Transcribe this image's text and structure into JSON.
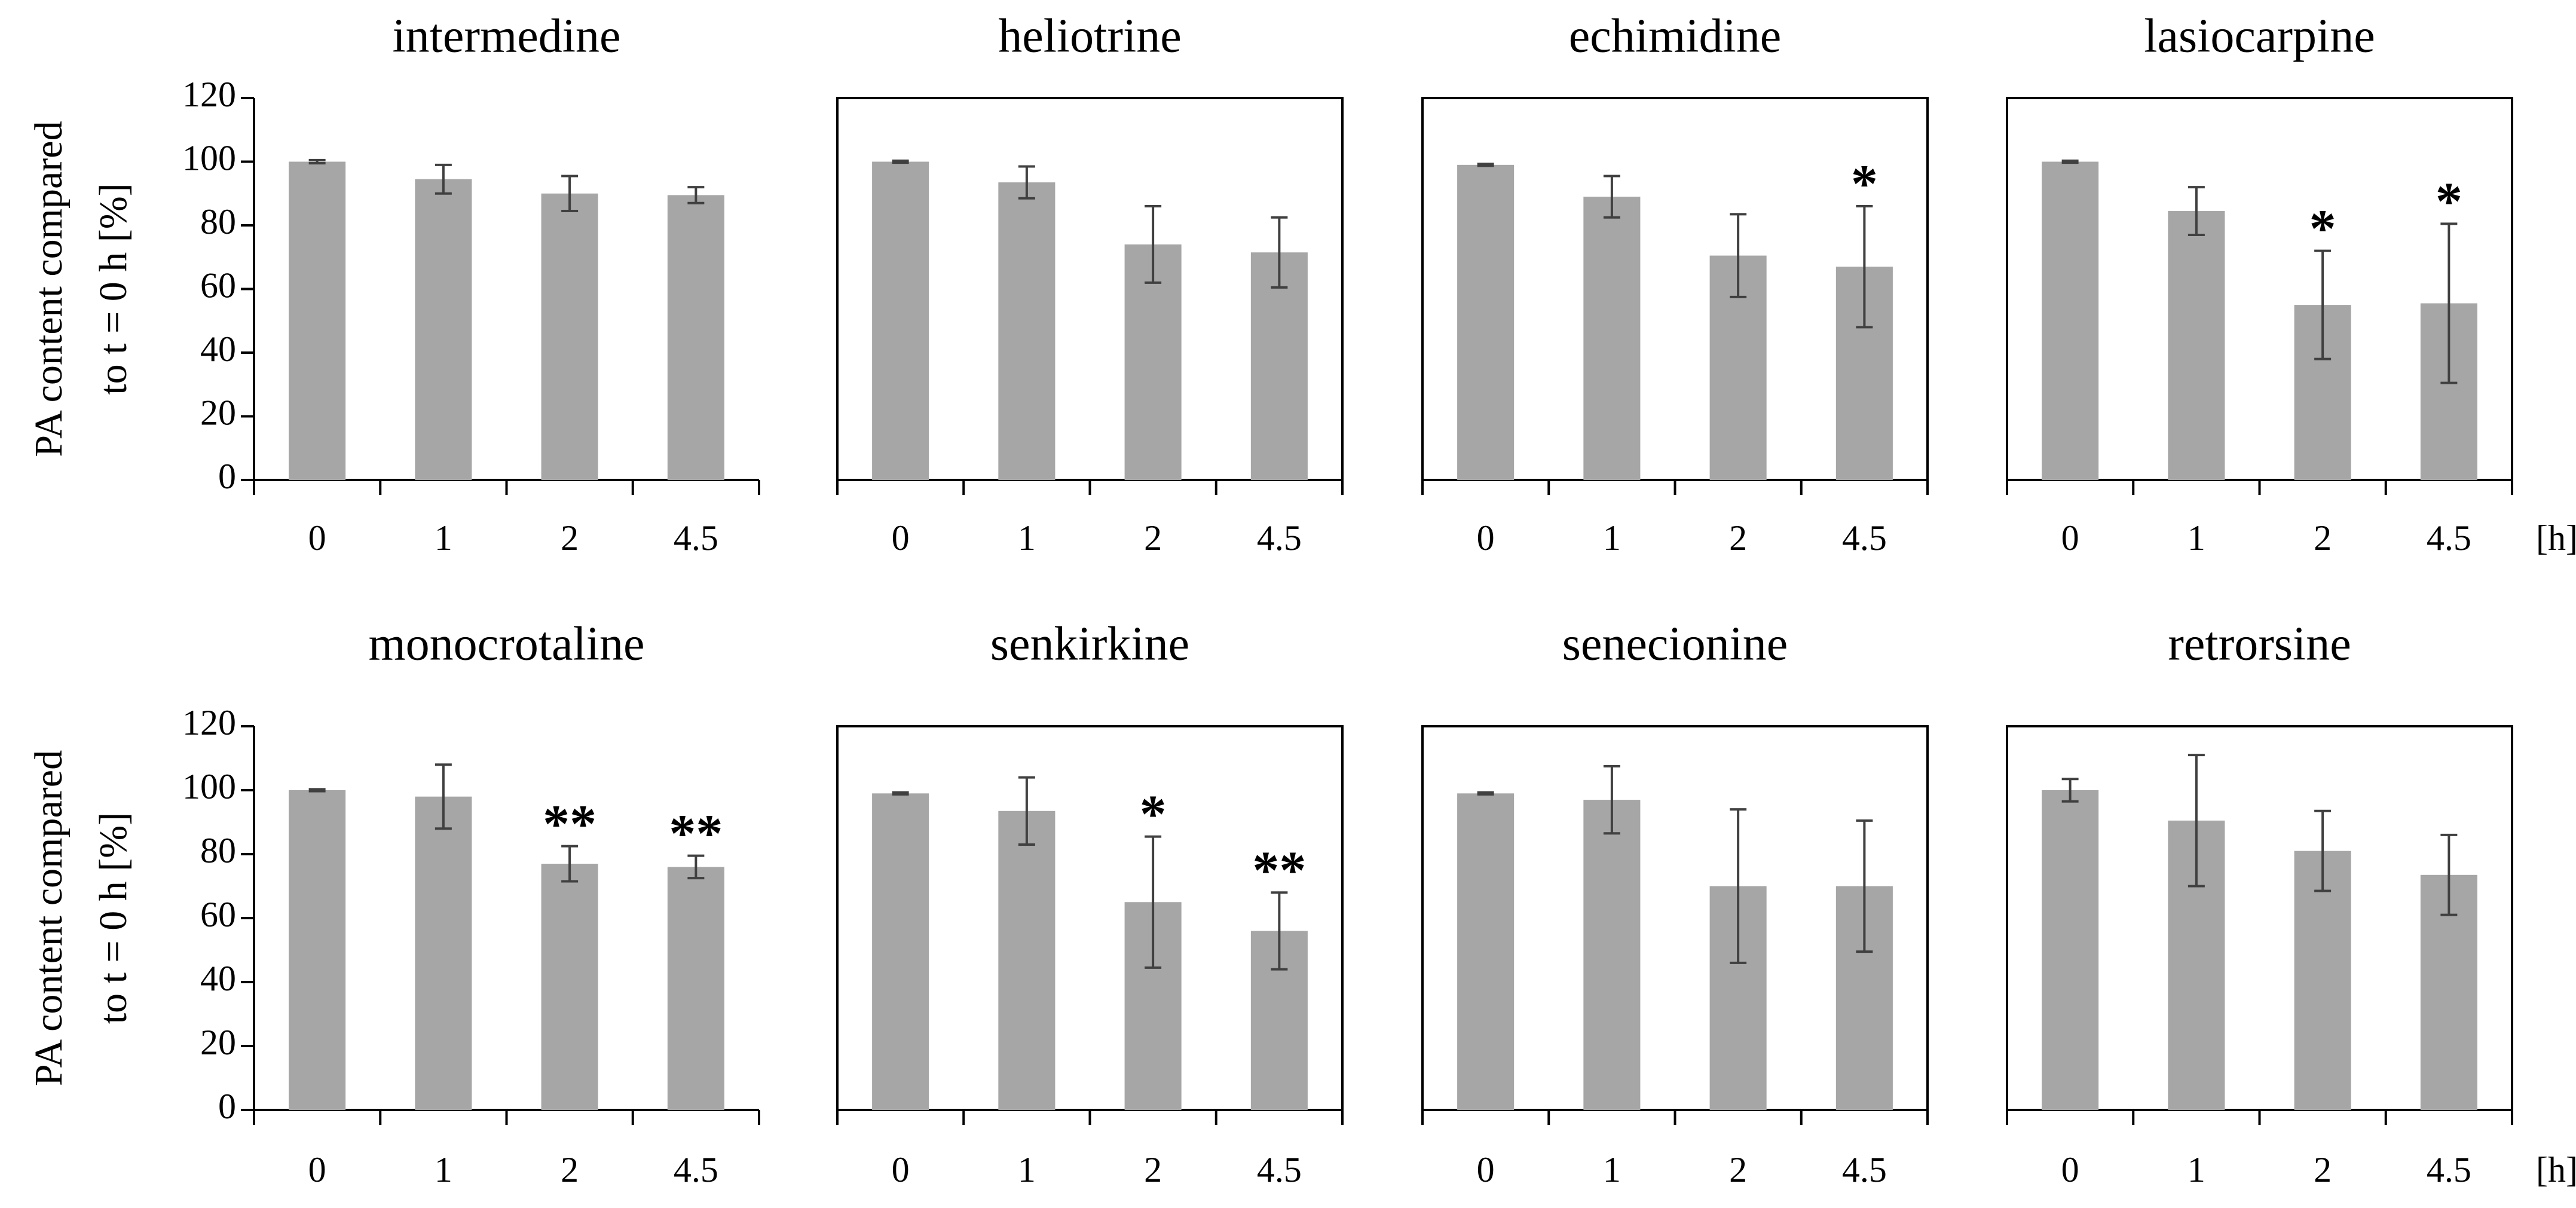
{
  "chart_data": [
    {
      "type": "bar",
      "title": "intermedine",
      "ylabel": [
        "PA content compared",
        "to t = 0 h [%]"
      ],
      "categories": [
        "0",
        "1",
        "2",
        "4.5"
      ],
      "values": [
        100,
        94.5,
        90,
        89.5
      ],
      "errors": [
        0.5,
        4.5,
        5.5,
        2.5
      ],
      "annotations": [
        null,
        null,
        null,
        null
      ],
      "color": "#a6a6a6",
      "ylim": [
        0,
        120
      ],
      "yticks": [
        0,
        20,
        40,
        60,
        80,
        100,
        120
      ],
      "frame": false
    },
    {
      "type": "bar",
      "title": "heliotrine",
      "categories": [
        "0",
        "1",
        "2",
        "4.5"
      ],
      "values": [
        100,
        93.5,
        74,
        71.5
      ],
      "errors": [
        0.3,
        5,
        12,
        11
      ],
      "annotations": [
        null,
        null,
        null,
        null
      ],
      "color": "#a6a6a6",
      "ylim": [
        0,
        120
      ],
      "frame": true
    },
    {
      "type": "bar",
      "title": "echimidine",
      "categories": [
        "0",
        "1",
        "2",
        "4.5"
      ],
      "values": [
        99,
        89,
        70.5,
        67
      ],
      "errors": [
        0.3,
        6.5,
        13,
        19
      ],
      "annotations": [
        null,
        null,
        null,
        "*"
      ],
      "color": "#a6a6a6",
      "ylim": [
        0,
        120
      ],
      "frame": true
    },
    {
      "type": "bar",
      "title": "lasiocarpine",
      "xunit": "[h]",
      "categories": [
        "0",
        "1",
        "2",
        "4.5"
      ],
      "values": [
        100,
        84.5,
        55,
        55.5
      ],
      "errors": [
        0.3,
        7.5,
        17,
        25
      ],
      "annotations": [
        null,
        null,
        "*",
        "*"
      ],
      "color": "#a6a6a6",
      "ylim": [
        0,
        120
      ],
      "frame": true
    },
    {
      "type": "bar",
      "title": "monocrotaline",
      "ylabel": [
        "PA content compared",
        "to t = 0 h [%]"
      ],
      "categories": [
        "0",
        "1",
        "2",
        "4.5"
      ],
      "values": [
        100,
        98,
        77,
        76
      ],
      "errors": [
        0.3,
        10,
        5.5,
        3.5
      ],
      "annotations": [
        null,
        null,
        "**",
        "**"
      ],
      "color": "#a6a6a6",
      "ylim": [
        0,
        120
      ],
      "yticks": [
        0,
        20,
        40,
        60,
        80,
        100,
        120
      ],
      "frame": false
    },
    {
      "type": "bar",
      "title": "senkirkine",
      "categories": [
        "0",
        "1",
        "2",
        "4.5"
      ],
      "values": [
        99,
        93.5,
        65,
        56
      ],
      "errors": [
        0.3,
        10.5,
        20.5,
        12
      ],
      "annotations": [
        null,
        null,
        "*",
        "**"
      ],
      "color": "#a6a6a6",
      "ylim": [
        0,
        120
      ],
      "frame": true
    },
    {
      "type": "bar",
      "title": "senecionine",
      "categories": [
        "0",
        "1",
        "2",
        "4.5"
      ],
      "values": [
        99,
        97,
        70,
        70
      ],
      "errors": [
        0.3,
        10.5,
        24,
        20.5
      ],
      "annotations": [
        null,
        null,
        null,
        null
      ],
      "color": "#a6a6a6",
      "ylim": [
        0,
        120
      ],
      "frame": true
    },
    {
      "type": "bar",
      "title": "retrorsine",
      "xunit": "[h]",
      "categories": [
        "0",
        "1",
        "2",
        "4.5"
      ],
      "values": [
        100,
        90.5,
        81,
        73.5
      ],
      "errors": [
        3.5,
        20.5,
        12.5,
        12.5
      ],
      "annotations": [
        null,
        null,
        null,
        null
      ],
      "color": "#a6a6a6",
      "ylim": [
        0,
        120
      ],
      "frame": true
    }
  ]
}
